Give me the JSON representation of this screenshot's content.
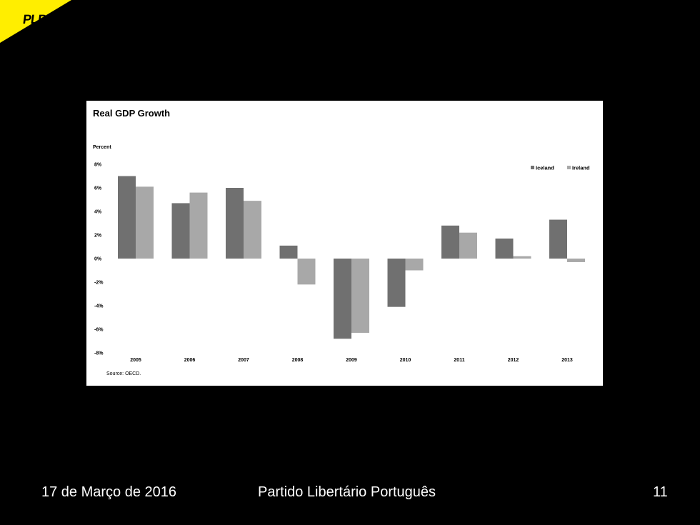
{
  "logo": {
    "text": "PLP",
    "corner_color": "#ffee00"
  },
  "footer": {
    "date": "17 de Março de 2016",
    "organization": "Partido Libertário Português",
    "page_number": "11"
  },
  "chart_data": {
    "type": "bar",
    "title": "Real GDP Growth",
    "ylabel": "Percent",
    "xlabel": "",
    "source": "Source: OECD.",
    "categories": [
      "2005",
      "2006",
      "2007",
      "2008",
      "2009",
      "2010",
      "2011",
      "2012",
      "2013"
    ],
    "series": [
      {
        "name": "Iceland",
        "color": "#707070",
        "values": [
          7.0,
          4.7,
          6.0,
          1.1,
          -6.8,
          -4.1,
          2.8,
          1.7,
          3.3
        ]
      },
      {
        "name": "Ireland",
        "color": "#a8a8a8",
        "values": [
          6.1,
          5.6,
          4.9,
          -2.2,
          -6.3,
          -1.0,
          2.2,
          0.2,
          -0.3
        ]
      }
    ],
    "ylim": [
      -8,
      8
    ],
    "yticks": [
      8,
      6,
      4,
      2,
      0,
      -2,
      -4,
      -6,
      -8
    ],
    "ytick_labels": [
      "8%",
      "6%",
      "4%",
      "2%",
      "0%",
      "-2%",
      "-4%",
      "-6%",
      "-8%"
    ],
    "grid": false,
    "legend_position": "top-right"
  }
}
